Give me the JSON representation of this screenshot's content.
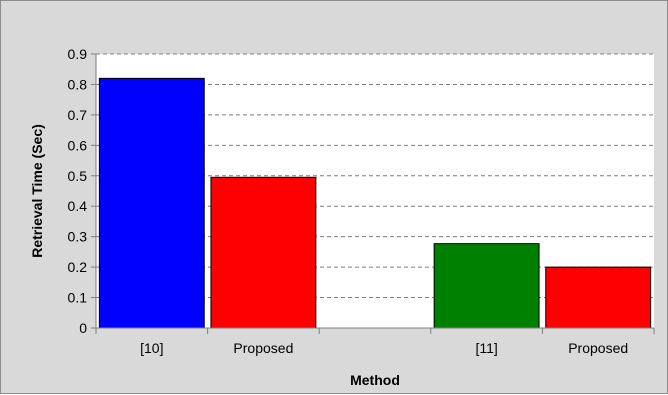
{
  "chart_data": {
    "type": "bar",
    "xlabel": "Method",
    "ylabel": "Retrieval Time (Sec)",
    "ylim": [
      0,
      0.9
    ],
    "yticks": [
      "0",
      "0.1",
      "0.2",
      "0.3",
      "0.4",
      "0.5",
      "0.6",
      "0.7",
      "0.8",
      "0.9"
    ],
    "grid": "horizontal dashed",
    "legend": "none",
    "categories": [
      "[10]",
      "Proposed",
      "",
      "[11]",
      "Proposed"
    ],
    "values": [
      0.82,
      0.495,
      null,
      0.277,
      0.2
    ],
    "colors": [
      "#0000ff",
      "#ff0000",
      null,
      "#008000",
      "#ff0000"
    ],
    "plot_background": "#ffffff",
    "chart_background": "#d9d9d9"
  }
}
